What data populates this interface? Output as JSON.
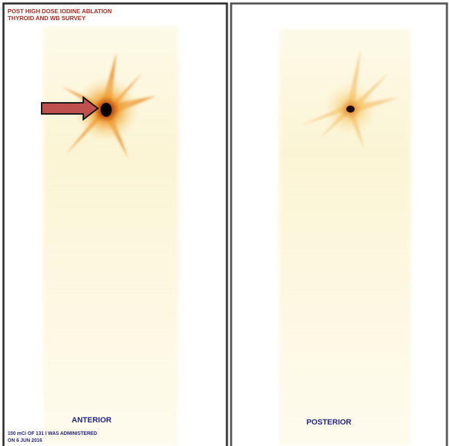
{
  "header": {
    "title_lines": [
      "POST HIGH DOSE IODINE ABLATION",
      "THYROID AND WB SURVEY"
    ]
  },
  "panels": [
    {
      "label": "ANTERIOR"
    },
    {
      "label": "POSTERIOR"
    }
  ],
  "footer": {
    "lines": [
      "150 mCi OF 131 I WAS ADMINISTERED",
      "ON 6 JUN 2016"
    ]
  }
}
